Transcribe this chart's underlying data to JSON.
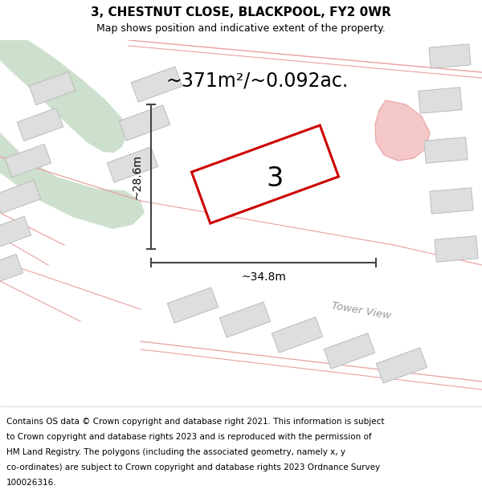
{
  "title_line1": "3, CHESTNUT CLOSE, BLACKPOOL, FY2 0WR",
  "title_line2": "Map shows position and indicative extent of the property.",
  "area_text": "~371m²/~0.092ac.",
  "label_width": "~34.8m",
  "label_height": "~28.6m",
  "property_number": "3",
  "street_label": "Tower View",
  "footer_lines": [
    "Contains OS data © Crown copyright and database right 2021. This information is subject",
    "to Crown copyright and database rights 2023 and is reproduced with the permission of",
    "HM Land Registry. The polygons (including the associated geometry, namely x, y",
    "co-ordinates) are subject to Crown copyright and database rights 2023 Ordnance Survey",
    "100026316."
  ],
  "bg_color": "#f0f0f0",
  "map_bg": "#f8f8f8",
  "green_color": "#cde0cd",
  "building_color": "#dedede",
  "building_edge": "#bbbbbb",
  "property_fill": "#ffffff",
  "property_edge": "#cc0000",
  "dim_color": "#444444",
  "pink": "#e8a0a0",
  "light_pink": "#f5c8c8",
  "white": "#ffffff",
  "road_fill": "#f0f0f0"
}
